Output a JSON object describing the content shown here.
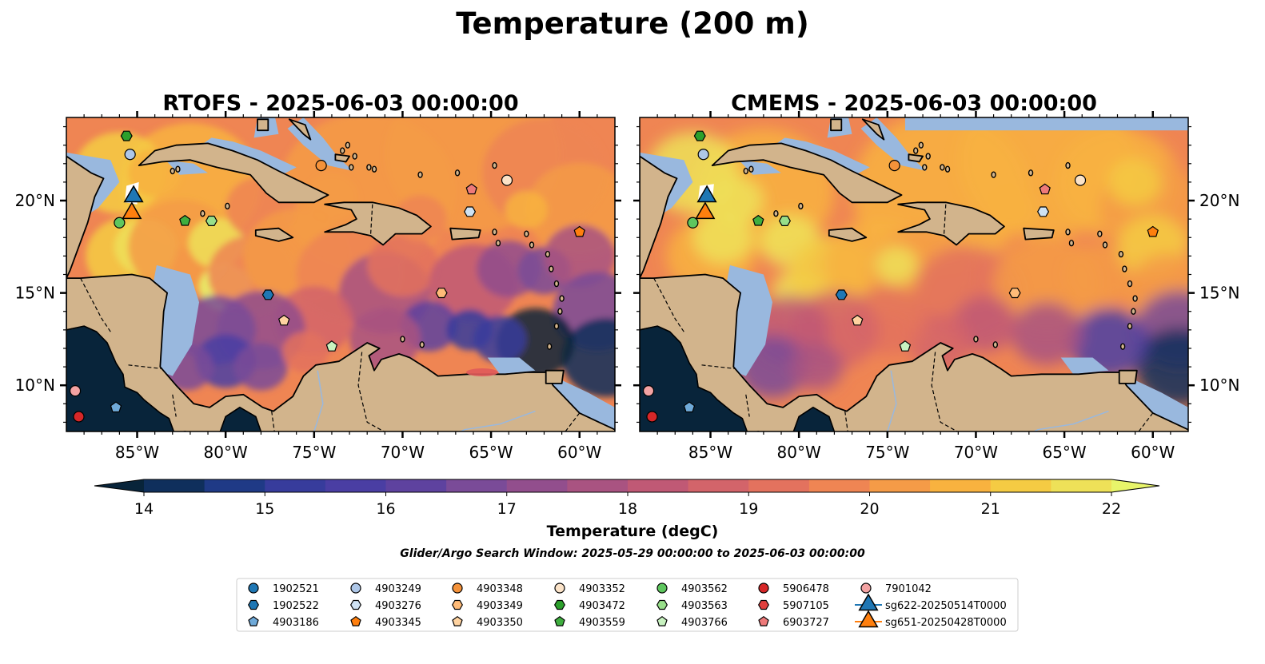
{
  "title": "Temperature (200 m)",
  "panels": [
    {
      "title": "RTOFS - 2025-06-03 00:00:00"
    },
    {
      "title": "CMEMS - 2025-06-03 00:00:00"
    }
  ],
  "colorbar": {
    "label": "Temperature (degC)",
    "ticks": [
      "14",
      "15",
      "16",
      "17",
      "18",
      "19",
      "20",
      "21",
      "22"
    ],
    "min": 14,
    "max": 22,
    "colors": [
      "#08243a",
      "#0f2f5c",
      "#1f3a86",
      "#373c9c",
      "#4a3ea3",
      "#5e429f",
      "#7a4b98",
      "#924e8d",
      "#a95381",
      "#c05975",
      "#d3646a",
      "#e3725e",
      "#ef8553",
      "#f59b47",
      "#f8b23f",
      "#f5cb43",
      "#eee158",
      "#e8f56a"
    ],
    "extend": "both"
  },
  "subtitle": "Glider/Argo Search Window: 2025-05-29 00:00:00 to 2025-06-03 00:00:00",
  "chart_data": {
    "type": "scatter",
    "xlabel": "",
    "ylabel": "",
    "x_ticks": [
      "85°W",
      "80°W",
      "75°W",
      "70°W",
      "65°W",
      "60°W"
    ],
    "y_ticks": [
      "20°N",
      "15°N",
      "10°N"
    ],
    "xlim": [
      -89,
      -58
    ],
    "ylim": [
      7.5,
      24.5
    ],
    "panel_colors": {
      "land": "#d2b48c",
      "shelf": "#99b8de",
      "coast": "#000000"
    },
    "series": [
      {
        "name": "1902521",
        "marker": "circle",
        "color": "#1f77b4",
        "points": []
      },
      {
        "name": "1902522",
        "marker": "hexagon",
        "color": "#1f77b4",
        "points": [
          [
            -77.6,
            14.9
          ]
        ]
      },
      {
        "name": "4903186",
        "marker": "pentagon",
        "color": "#6faad9",
        "points": [
          [
            -86.2,
            8.8
          ]
        ]
      },
      {
        "name": "4903249",
        "marker": "circle",
        "color": "#aec7e8",
        "points": [
          [
            -85.4,
            22.5
          ]
        ]
      },
      {
        "name": "4903276",
        "marker": "hexagon",
        "color": "#cfe2f3",
        "points": [
          [
            -66.2,
            19.4
          ]
        ]
      },
      {
        "name": "4903345",
        "marker": "pentagon",
        "color": "#ff7f0e",
        "points": [
          [
            -60.0,
            18.3
          ]
        ]
      },
      {
        "name": "4903348",
        "marker": "circle",
        "color": "#f4923a",
        "points": [
          [
            -74.6,
            21.9
          ]
        ]
      },
      {
        "name": "4903349",
        "marker": "hexagon",
        "color": "#ffbb78",
        "points": [
          [
            -67.8,
            15.0
          ]
        ]
      },
      {
        "name": "4903350",
        "marker": "pentagon",
        "color": "#ffd3a0",
        "points": [
          [
            -76.7,
            13.5
          ]
        ]
      },
      {
        "name": "4903352",
        "marker": "circle",
        "color": "#fbe3c8",
        "points": [
          [
            -64.1,
            21.1
          ]
        ]
      },
      {
        "name": "4903472",
        "marker": "hexagon",
        "color": "#2ca02c",
        "points": [
          [
            -85.6,
            23.5
          ]
        ]
      },
      {
        "name": "4903559",
        "marker": "pentagon",
        "color": "#3fae3f",
        "points": [
          [
            -82.3,
            18.9
          ]
        ]
      },
      {
        "name": "4903562",
        "marker": "circle",
        "color": "#5ec65e",
        "points": [
          [
            -86.0,
            18.8
          ]
        ]
      },
      {
        "name": "4903563",
        "marker": "hexagon",
        "color": "#98df8a",
        "points": [
          [
            -80.8,
            18.9
          ]
        ]
      },
      {
        "name": "4903766",
        "marker": "pentagon",
        "color": "#c8f2c0",
        "points": [
          [
            -74.0,
            12.1
          ]
        ]
      },
      {
        "name": "5906478",
        "marker": "circle",
        "color": "#d62728",
        "points": [
          [
            -88.3,
            8.3
          ]
        ]
      },
      {
        "name": "5907105",
        "marker": "hexagon",
        "color": "#e0403e",
        "points": []
      },
      {
        "name": "6903727",
        "marker": "pentagon",
        "color": "#ee7a7a",
        "points": [
          [
            -66.1,
            20.6
          ]
        ]
      },
      {
        "name": "7901042",
        "marker": "circle",
        "color": "#f4a3a3",
        "points": [
          [
            -88.5,
            9.7
          ]
        ]
      },
      {
        "name": "sg622-20250514T0000",
        "marker": "triangle",
        "color": "#1f77b4",
        "points": [
          [
            -85.2,
            20.3
          ]
        ]
      },
      {
        "name": "sg651-20250428T0000",
        "marker": "triangle",
        "color": "#ff7f0e",
        "points": [
          [
            -85.3,
            19.4
          ]
        ]
      }
    ]
  }
}
